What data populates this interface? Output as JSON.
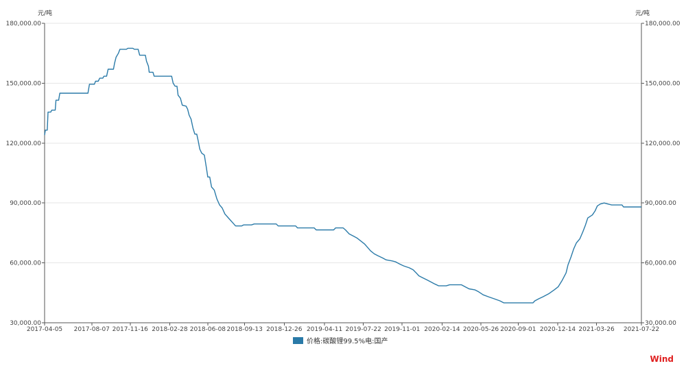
{
  "chart_data": {
    "type": "line",
    "y_unit_left": "元/吨",
    "y_unit_right": "元/吨",
    "ylim": [
      30000,
      180000
    ],
    "y_ticks": [
      30000,
      60000,
      90000,
      120000,
      150000,
      180000
    ],
    "y_tick_labels": [
      "30,000.00",
      "60,000.00",
      "90,000.00",
      "120,000.00",
      "150,000.00",
      "180,000.00"
    ],
    "x_tick_labels": [
      "2017-04-05",
      "2017-08-07",
      "2017-11-16",
      "2018-02-28",
      "2018-06-08",
      "2018-09-13",
      "2018-12-26",
      "2019-04-11",
      "2019-07-22",
      "2019-11-01",
      "2020-02-14",
      "2020-05-26",
      "2020-09-01",
      "2020-12-14",
      "2021-03-26",
      "2021-07-22"
    ],
    "grid": "horizontal",
    "legend_position": "bottom-center",
    "series": [
      {
        "name": "价格:碳酸锂99.5%电:国产",
        "color": "#2a7aa8",
        "points": [
          [
            "2017-04-05",
            124000
          ],
          [
            "2017-04-07",
            126500
          ],
          [
            "2017-04-12",
            126500
          ],
          [
            "2017-04-14",
            135500
          ],
          [
            "2017-04-21",
            135500
          ],
          [
            "2017-04-24",
            136500
          ],
          [
            "2017-05-03",
            136500
          ],
          [
            "2017-05-05",
            141500
          ],
          [
            "2017-05-12",
            141500
          ],
          [
            "2017-05-15",
            145000
          ],
          [
            "2017-07-28",
            145000
          ],
          [
            "2017-08-01",
            149500
          ],
          [
            "2017-08-14",
            149500
          ],
          [
            "2017-08-17",
            151000
          ],
          [
            "2017-08-24",
            151000
          ],
          [
            "2017-08-28",
            152500
          ],
          [
            "2017-09-05",
            152500
          ],
          [
            "2017-09-08",
            153500
          ],
          [
            "2017-09-15",
            153500
          ],
          [
            "2017-09-19",
            157000
          ],
          [
            "2017-10-03",
            157000
          ],
          [
            "2017-10-06",
            160000
          ],
          [
            "2017-10-10",
            163000
          ],
          [
            "2017-10-16",
            165000
          ],
          [
            "2017-10-20",
            167000
          ],
          [
            "2017-11-06",
            167000
          ],
          [
            "2017-11-10",
            167500
          ],
          [
            "2017-11-23",
            167500
          ],
          [
            "2017-11-27",
            167000
          ],
          [
            "2017-12-07",
            167000
          ],
          [
            "2017-12-11",
            164000
          ],
          [
            "2017-12-26",
            164000
          ],
          [
            "2017-12-29",
            161000
          ],
          [
            "2018-01-03",
            158500
          ],
          [
            "2018-01-05",
            155500
          ],
          [
            "2018-01-15",
            155500
          ],
          [
            "2018-01-18",
            153500
          ],
          [
            "2018-03-05",
            153500
          ],
          [
            "2018-03-09",
            150000
          ],
          [
            "2018-03-14",
            148500
          ],
          [
            "2018-03-19",
            148500
          ],
          [
            "2018-03-22",
            144000
          ],
          [
            "2018-03-28",
            142500
          ],
          [
            "2018-04-02",
            139000
          ],
          [
            "2018-04-12",
            138500
          ],
          [
            "2018-04-16",
            137000
          ],
          [
            "2018-04-20",
            134000
          ],
          [
            "2018-04-25",
            132000
          ],
          [
            "2018-04-30",
            127500
          ],
          [
            "2018-05-05",
            124500
          ],
          [
            "2018-05-10",
            124500
          ],
          [
            "2018-05-14",
            121000
          ],
          [
            "2018-05-18",
            117000
          ],
          [
            "2018-05-23",
            115000
          ],
          [
            "2018-05-30",
            114000
          ],
          [
            "2018-06-04",
            108000
          ],
          [
            "2018-06-08",
            103000
          ],
          [
            "2018-06-13",
            103000
          ],
          [
            "2018-06-18",
            98000
          ],
          [
            "2018-06-25",
            96500
          ],
          [
            "2018-07-02",
            92000
          ],
          [
            "2018-07-09",
            89000
          ],
          [
            "2018-07-16",
            87500
          ],
          [
            "2018-07-23",
            84500
          ],
          [
            "2018-07-30",
            83000
          ],
          [
            "2018-08-06",
            81500
          ],
          [
            "2018-08-13",
            80000
          ],
          [
            "2018-08-20",
            78500
          ],
          [
            "2018-09-05",
            78500
          ],
          [
            "2018-09-10",
            79000
          ],
          [
            "2018-10-01",
            79000
          ],
          [
            "2018-10-08",
            79500
          ],
          [
            "2018-12-05",
            79500
          ],
          [
            "2018-12-10",
            78500
          ],
          [
            "2019-01-25",
            78500
          ],
          [
            "2019-01-30",
            77500
          ],
          [
            "2019-03-15",
            77500
          ],
          [
            "2019-03-20",
            76500
          ],
          [
            "2019-05-05",
            76500
          ],
          [
            "2019-05-10",
            77500
          ],
          [
            "2019-05-30",
            77500
          ],
          [
            "2019-06-05",
            76500
          ],
          [
            "2019-06-15",
            74500
          ],
          [
            "2019-06-25",
            73500
          ],
          [
            "2019-07-05",
            72500
          ],
          [
            "2019-07-15",
            71000
          ],
          [
            "2019-07-25",
            69500
          ],
          [
            "2019-08-01",
            68000
          ],
          [
            "2019-08-10",
            66000
          ],
          [
            "2019-08-20",
            64500
          ],
          [
            "2019-08-30",
            63500
          ],
          [
            "2019-09-10",
            62500
          ],
          [
            "2019-09-20",
            61500
          ],
          [
            "2019-10-05",
            61000
          ],
          [
            "2019-10-15",
            60500
          ],
          [
            "2019-10-25",
            59500
          ],
          [
            "2019-11-05",
            58500
          ],
          [
            "2019-11-20",
            57500
          ],
          [
            "2019-11-30",
            56500
          ],
          [
            "2019-12-08",
            55000
          ],
          [
            "2019-12-15",
            53500
          ],
          [
            "2019-12-25",
            52500
          ],
          [
            "2020-01-05",
            51500
          ],
          [
            "2020-01-15",
            50500
          ],
          [
            "2020-01-25",
            49500
          ],
          [
            "2020-02-05",
            48500
          ],
          [
            "2020-02-25",
            48500
          ],
          [
            "2020-03-05",
            49000
          ],
          [
            "2020-04-05",
            49000
          ],
          [
            "2020-04-15",
            48000
          ],
          [
            "2020-04-25",
            47000
          ],
          [
            "2020-05-10",
            46500
          ],
          [
            "2020-05-20",
            45500
          ],
          [
            "2020-06-01",
            44000
          ],
          [
            "2020-06-15",
            43000
          ],
          [
            "2020-06-30",
            42000
          ],
          [
            "2020-07-15",
            41000
          ],
          [
            "2020-07-25",
            40000
          ],
          [
            "2020-10-10",
            40000
          ],
          [
            "2020-10-15",
            41000
          ],
          [
            "2020-10-25",
            42000
          ],
          [
            "2020-11-05",
            43000
          ],
          [
            "2020-11-20",
            44500
          ],
          [
            "2020-12-05",
            46500
          ],
          [
            "2020-12-15",
            48000
          ],
          [
            "2020-12-25",
            51000
          ],
          [
            "2021-01-05",
            55000
          ],
          [
            "2021-01-10",
            59000
          ],
          [
            "2021-01-18",
            63000
          ],
          [
            "2021-01-25",
            67000
          ],
          [
            "2021-02-01",
            70000
          ],
          [
            "2021-02-10",
            72000
          ],
          [
            "2021-02-18",
            75500
          ],
          [
            "2021-02-25",
            79000
          ],
          [
            "2021-03-03",
            82500
          ],
          [
            "2021-03-15",
            84000
          ],
          [
            "2021-03-22",
            86000
          ],
          [
            "2021-03-28",
            88500
          ],
          [
            "2021-04-05",
            89500
          ],
          [
            "2021-04-15",
            90000
          ],
          [
            "2021-04-25",
            89500
          ],
          [
            "2021-05-05",
            89000
          ],
          [
            "2021-06-01",
            89000
          ],
          [
            "2021-06-05",
            88000
          ],
          [
            "2021-07-22",
            88000
          ]
        ]
      }
    ]
  },
  "watermark": {
    "text": "Wind",
    "color": "#e02020"
  }
}
